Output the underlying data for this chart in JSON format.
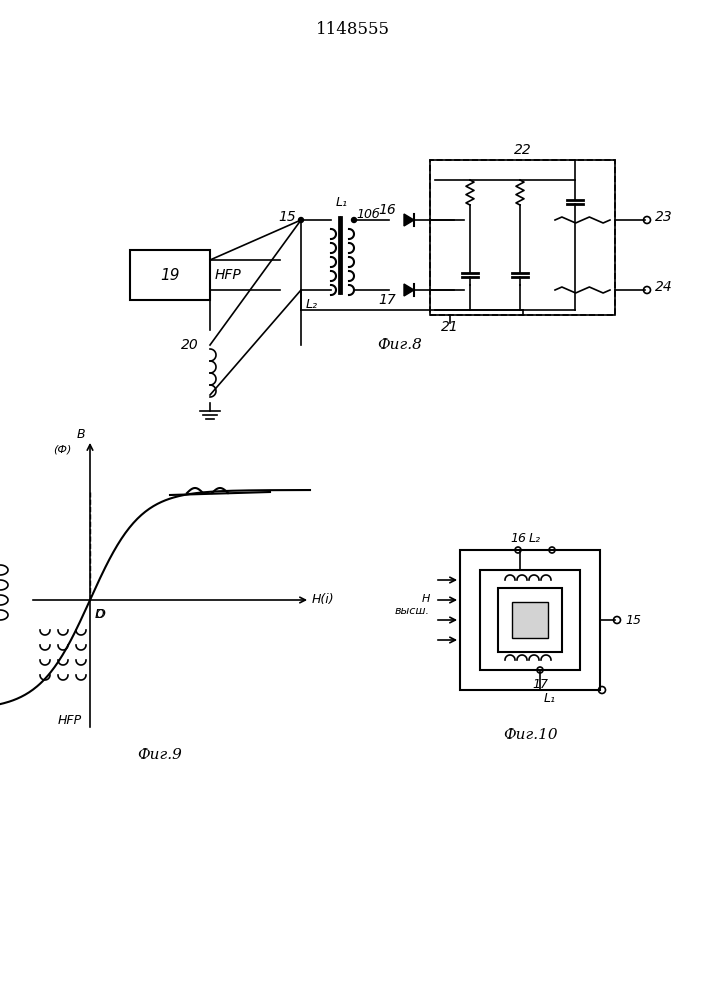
{
  "title": "1148555",
  "fig8_label": "Фиг.8",
  "fig9_label": "Фиг.9",
  "fig10_label": "Фиг.10",
  "bg_color": "#ffffff",
  "line_color": "#000000",
  "text_color": "#000000"
}
